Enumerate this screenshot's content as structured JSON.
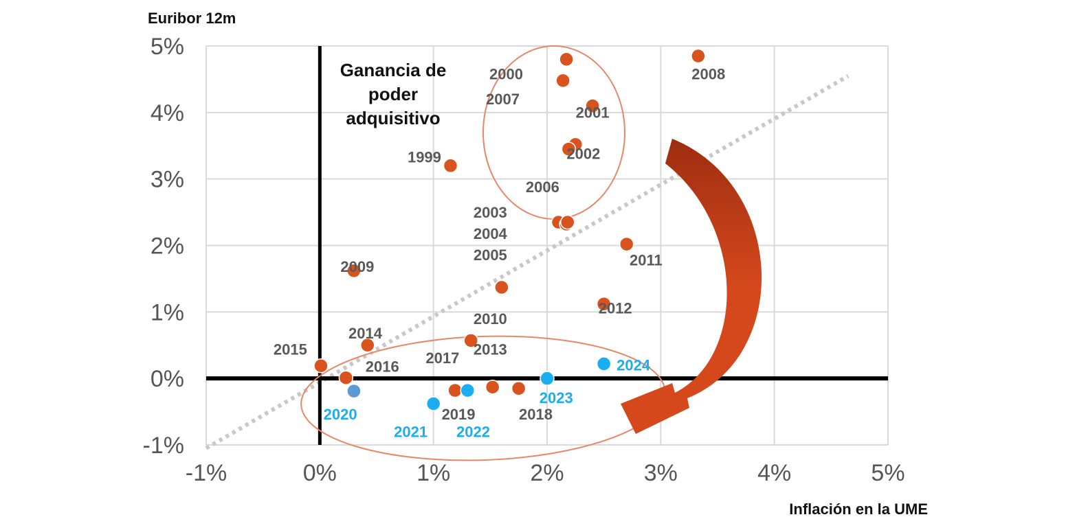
{
  "chart_data": {
    "type": "scatter",
    "ylabel": "Euribor 12m",
    "xlabel": "Inflación en la UME",
    "annotation": [
      "Ganancia de",
      "poder",
      "adquisitivo"
    ],
    "xlim": [
      -1,
      5
    ],
    "ylim": [
      -1,
      5
    ],
    "x_ticks": [
      -1,
      0,
      1,
      2,
      3,
      4,
      5
    ],
    "y_ticks": [
      -1,
      0,
      1,
      2,
      3,
      4,
      5
    ],
    "x_tick_labels": [
      "-1%",
      "0%",
      "1%",
      "2%",
      "3%",
      "4%",
      "5%"
    ],
    "y_tick_labels": [
      "-1%",
      "0%",
      "1%",
      "2%",
      "3%",
      "4%",
      "5%"
    ],
    "grid": true,
    "reference_line": "dotted diagonal y = x",
    "colors": {
      "past": "#d9531e",
      "recent": "#1aaef0",
      "year_2020": "#5b9bd5",
      "label_gray": "#595959",
      "label_blue": "#1aaef0",
      "ellipse": "#e8866a",
      "arrow": "#d4481c",
      "grid": "#d9d9d9",
      "diagonal": "#c8c8c8"
    },
    "points": [
      {
        "label": "1999",
        "x": 1.15,
        "y": 3.2,
        "group": "past"
      },
      {
        "label": "2000",
        "x": 2.17,
        "y": 4.8,
        "group": "past"
      },
      {
        "label": "2001",
        "x": 2.4,
        "y": 4.1,
        "group": "past"
      },
      {
        "label": "2002",
        "x": 2.25,
        "y": 3.52,
        "group": "past"
      },
      {
        "label": "2003",
        "x": 2.1,
        "y": 2.35,
        "group": "past"
      },
      {
        "label": "2004",
        "x": 2.17,
        "y": 2.32,
        "group": "past"
      },
      {
        "label": "2005",
        "x": 2.18,
        "y": 2.35,
        "group": "past"
      },
      {
        "label": "2006",
        "x": 2.19,
        "y": 3.45,
        "group": "past"
      },
      {
        "label": "2007",
        "x": 2.14,
        "y": 4.48,
        "group": "past"
      },
      {
        "label": "2008",
        "x": 3.33,
        "y": 4.85,
        "group": "past"
      },
      {
        "label": "2009",
        "x": 0.3,
        "y": 1.62,
        "group": "past"
      },
      {
        "label": "2010",
        "x": 1.6,
        "y": 1.37,
        "group": "past"
      },
      {
        "label": "2011",
        "x": 2.7,
        "y": 2.02,
        "group": "past"
      },
      {
        "label": "2012",
        "x": 2.5,
        "y": 1.12,
        "group": "past"
      },
      {
        "label": "2013",
        "x": 1.33,
        "y": 0.57,
        "group": "past"
      },
      {
        "label": "2014",
        "x": 0.42,
        "y": 0.5,
        "group": "past"
      },
      {
        "label": "2015",
        "x": 0.01,
        "y": 0.19,
        "group": "past"
      },
      {
        "label": "2016",
        "x": 0.23,
        "y": 0.01,
        "group": "past"
      },
      {
        "label": "2017",
        "x": 1.52,
        "y": -0.13,
        "group": "past"
      },
      {
        "label": "2018",
        "x": 1.75,
        "y": -0.15,
        "group": "past"
      },
      {
        "label": "2019",
        "x": 1.19,
        "y": -0.18,
        "group": "past"
      },
      {
        "label": "2020",
        "x": 0.3,
        "y": -0.19,
        "group": "year_2020"
      },
      {
        "label": "2021",
        "x": 1.0,
        "y": -0.38,
        "group": "recent"
      },
      {
        "label": "2022",
        "x": 1.3,
        "y": -0.18,
        "group": "recent"
      },
      {
        "label": "2023",
        "x": 2.0,
        "y": 0.0,
        "group": "recent"
      },
      {
        "label": "2024",
        "x": 2.5,
        "y": 0.22,
        "group": "recent"
      }
    ],
    "year_labels": [
      {
        "text": "1999",
        "x": 0.92,
        "y": 3.25,
        "color": "gray"
      },
      {
        "text": "2000",
        "x": 1.64,
        "y": 4.5,
        "color": "gray"
      },
      {
        "text": "2007",
        "x": 1.61,
        "y": 4.12,
        "color": "gray"
      },
      {
        "text": "2001",
        "x": 2.4,
        "y": 3.92,
        "color": "gray"
      },
      {
        "text": "2002",
        "x": 2.32,
        "y": 3.3,
        "color": "gray"
      },
      {
        "text": "2006",
        "x": 1.96,
        "y": 2.8,
        "color": "gray"
      },
      {
        "text": "2008",
        "x": 3.42,
        "y": 4.5,
        "color": "gray"
      },
      {
        "text": "2003",
        "x": 1.5,
        "y": 2.42,
        "color": "gray"
      },
      {
        "text": "2004",
        "x": 1.5,
        "y": 2.1,
        "color": "gray"
      },
      {
        "text": "2005",
        "x": 1.5,
        "y": 1.78,
        "color": "gray"
      },
      {
        "text": "2009",
        "x": 0.33,
        "y": 1.6,
        "color": "gray"
      },
      {
        "text": "2011",
        "x": 2.87,
        "y": 1.7,
        "color": "gray"
      },
      {
        "text": "2012",
        "x": 2.6,
        "y": 0.98,
        "color": "gray"
      },
      {
        "text": "2010",
        "x": 1.5,
        "y": 0.82,
        "color": "gray"
      },
      {
        "text": "2013",
        "x": 1.5,
        "y": 0.36,
        "color": "gray"
      },
      {
        "text": "2014",
        "x": 0.4,
        "y": 0.6,
        "color": "gray"
      },
      {
        "text": "2015",
        "x": -0.26,
        "y": 0.36,
        "color": "gray"
      },
      {
        "text": "2016",
        "x": 0.55,
        "y": 0.1,
        "color": "gray"
      },
      {
        "text": "2017",
        "x": 1.08,
        "y": 0.23,
        "color": "gray"
      },
      {
        "text": "2019",
        "x": 1.22,
        "y": -0.62,
        "color": "gray"
      },
      {
        "text": "2018",
        "x": 1.9,
        "y": -0.62,
        "color": "gray"
      },
      {
        "text": "2020",
        "x": 0.18,
        "y": -0.62,
        "color": "blue"
      },
      {
        "text": "2021",
        "x": 0.8,
        "y": -0.88,
        "color": "blue"
      },
      {
        "text": "2022",
        "x": 1.35,
        "y": -0.88,
        "color": "blue"
      },
      {
        "text": "2023",
        "x": 2.08,
        "y": -0.37,
        "color": "blue"
      },
      {
        "text": "2024",
        "x": 2.76,
        "y": 0.12,
        "color": "blue"
      }
    ]
  }
}
